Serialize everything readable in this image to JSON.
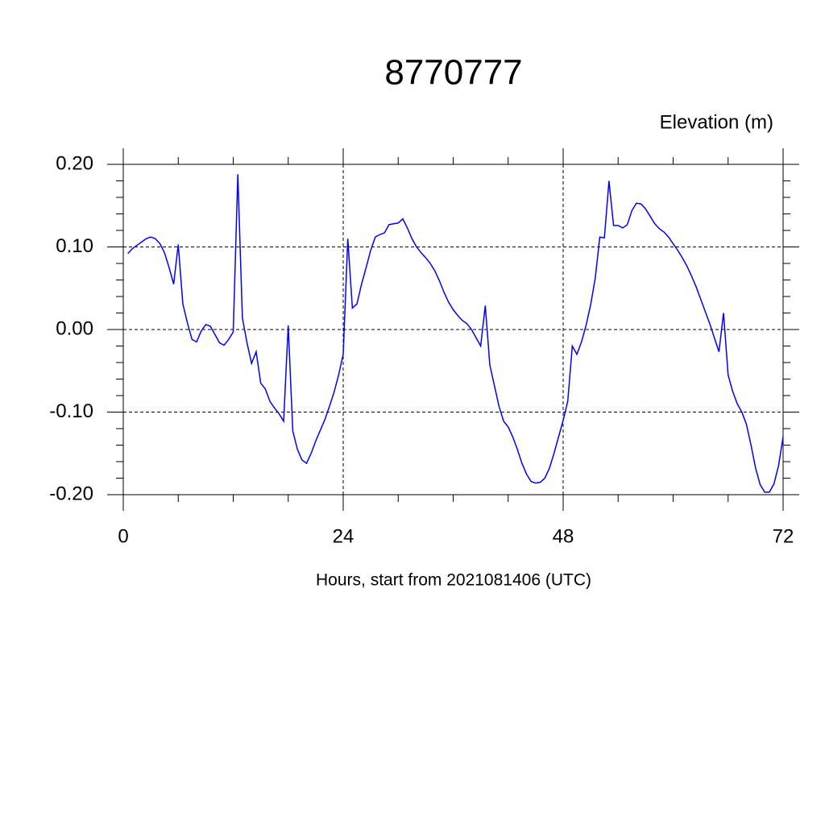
{
  "chart_data": {
    "type": "line",
    "title": "8770777",
    "subtitle": "Elevation (m)",
    "x_label": "Hours, start from 2021081406 (UTC)",
    "xlim": [
      0,
      72
    ],
    "ylim": [
      -0.2,
      0.2
    ],
    "xticks": [
      0,
      24,
      48,
      72
    ],
    "yticks": [
      {
        "value": 0.2,
        "label": "0.20"
      },
      {
        "value": 0.1,
        "label": "0.10"
      },
      {
        "value": 0,
        "label": "0.00"
      },
      {
        "value": -0.1,
        "label": "-0.10"
      },
      {
        "value": -0.2,
        "label": "-0.20"
      }
    ],
    "xminorticks": [
      6,
      12,
      18,
      30,
      36,
      42,
      54,
      60,
      66
    ],
    "yminorticks": [
      0.18,
      0.16,
      0.14,
      0.12,
      0.08,
      0.06,
      0.04,
      0.02,
      -0.02,
      -0.04,
      -0.06,
      -0.08,
      -0.12,
      -0.14,
      -0.16,
      -0.18
    ],
    "grid": true,
    "series": [
      {
        "color": "#0000ff",
        "x": [
          0.5,
          1,
          1.5,
          2,
          2.5,
          3,
          3.5,
          4,
          4.5,
          5,
          5.5,
          6,
          6.5,
          7,
          7.5,
          8,
          8.5,
          9,
          9.5,
          10,
          10.5,
          11,
          11.5,
          12,
          12.5,
          13,
          13.5,
          14,
          14.5,
          15,
          15.5,
          16,
          16.5,
          17,
          17.5,
          18,
          18.5,
          19,
          19.5,
          20,
          20.5,
          21,
          21.5,
          22,
          22.5,
          23,
          23.5,
          24,
          24.5,
          25,
          25.5,
          26,
          26.5,
          27,
          27.5,
          28,
          28.5,
          29,
          29.5,
          30,
          30.5,
          31,
          31.5,
          32,
          32.5,
          33,
          33.5,
          34,
          34.5,
          35,
          35.5,
          36,
          36.5,
          37,
          37.5,
          38,
          38.5,
          39,
          39.5,
          40,
          40.5,
          41,
          41.5,
          42,
          42.5,
          43,
          43.5,
          44,
          44.5,
          45,
          45.5,
          46,
          46.5,
          47,
          47.5,
          48,
          48.5,
          49,
          49.5,
          50,
          50.5,
          51,
          51.5,
          52,
          52.5,
          53,
          53.5,
          54,
          54.5,
          55,
          55.5,
          56,
          56.5,
          57,
          57.5,
          58,
          58.5,
          59,
          59.5,
          60,
          60.5,
          61,
          61.5,
          62,
          62.5,
          63,
          63.5,
          64,
          64.5,
          65,
          65.5,
          66,
          66.5,
          67,
          67.5,
          68,
          68.5,
          69,
          69.5,
          70,
          70.5,
          71,
          71.5,
          72
        ],
        "values": [
          0.092,
          0.098,
          0.102,
          0.106,
          0.11,
          0.112,
          0.11,
          0.104,
          0.093,
          0.075,
          0.055,
          0.103,
          0.031,
          0.008,
          -0.012,
          -0.015,
          -0.002,
          0.006,
          0.004,
          -0.006,
          -0.016,
          -0.019,
          -0.012,
          -0.003,
          0.188,
          0.014,
          -0.016,
          -0.041,
          -0.027,
          -0.065,
          -0.072,
          -0.087,
          -0.095,
          -0.102,
          -0.111,
          0.005,
          -0.123,
          -0.145,
          -0.158,
          -0.162,
          -0.15,
          -0.135,
          -0.122,
          -0.109,
          -0.093,
          -0.076,
          -0.055,
          -0.03,
          0.11,
          0.026,
          0.031,
          0.055,
          0.075,
          0.096,
          0.112,
          0.115,
          0.117,
          0.127,
          0.128,
          0.129,
          0.134,
          0.123,
          0.11,
          0.1,
          0.093,
          0.087,
          0.08,
          0.071,
          0.059,
          0.045,
          0.033,
          0.024,
          0.017,
          0.011,
          0.007,
          0,
          -0.01,
          -0.02,
          0.029,
          -0.043,
          -0.068,
          -0.093,
          -0.111,
          -0.118,
          -0.13,
          -0.145,
          -0.162,
          -0.175,
          -0.184,
          -0.186,
          -0.185,
          -0.18,
          -0.168,
          -0.15,
          -0.13,
          -0.11,
          -0.087,
          -0.02,
          -0.03,
          -0.015,
          0.005,
          0.03,
          0.062,
          0.112,
          0.111,
          0.18,
          0.126,
          0.126,
          0.123,
          0.127,
          0.144,
          0.153,
          0.152,
          0.146,
          0.137,
          0.128,
          0.122,
          0.118,
          0.112,
          0.104,
          0.096,
          0.087,
          0.077,
          0.065,
          0.052,
          0.037,
          0.022,
          0.007,
          -0.01,
          -0.027,
          0.02,
          -0.055,
          -0.075,
          -0.09,
          -0.1,
          -0.115,
          -0.14,
          -0.168,
          -0.188,
          -0.197,
          -0.197,
          -0.187,
          -0.165,
          -0.13
        ]
      }
    ]
  }
}
